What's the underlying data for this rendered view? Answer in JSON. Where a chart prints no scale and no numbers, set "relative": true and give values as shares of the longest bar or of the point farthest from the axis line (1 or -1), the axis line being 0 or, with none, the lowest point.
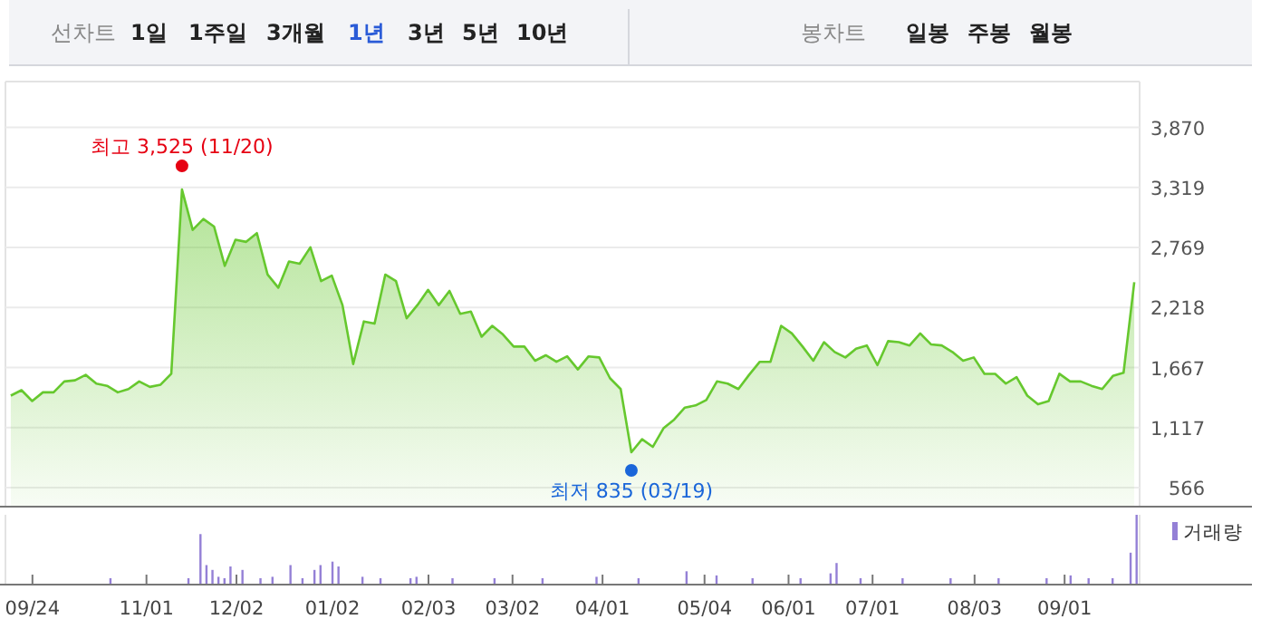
{
  "chart_data": [
    {
      "type": "other",
      "annotations": [
        "선차트",
        "1일",
        "1주일",
        "3개월",
        "1년",
        "3년",
        "5년",
        "10년",
        "봉차트",
        "일봉",
        "주봉",
        "월봉"
      ],
      "colors": [
        "#888888",
        "#222222",
        "#222222",
        "#222222",
        "#2a5bd7",
        "#222222",
        "#222222",
        "#222222",
        "#888888",
        "#222222",
        "#222222",
        "#222222"
      ]
    },
    {
      "type": "area",
      "tick_labels": "y",
      "grid": "y",
      "ylim": [
        400,
        4290
      ],
      "categories": [
        null,
        null,
        null,
        null,
        null,
        null,
        null,
        null,
        null,
        null,
        null,
        null,
        null,
        null,
        null,
        null,
        null,
        null,
        null,
        null,
        null,
        null,
        null,
        null,
        null,
        null,
        null,
        null,
        null,
        null,
        null,
        null,
        null,
        null,
        null,
        null,
        null,
        null,
        null,
        null,
        null,
        null,
        null,
        null,
        null,
        null,
        null,
        null,
        null,
        null,
        null,
        null,
        null,
        null,
        null,
        null,
        null,
        null,
        null,
        null,
        null,
        null,
        null,
        null,
        null,
        null,
        null,
        null,
        null,
        null,
        null,
        null,
        null,
        null,
        null,
        null,
        null,
        null,
        null,
        null,
        null,
        null,
        null,
        null,
        null,
        null,
        null,
        null,
        null,
        null,
        null,
        null,
        null,
        null,
        null,
        null,
        null,
        null,
        null,
        null,
        null,
        null,
        null,
        null,
        null,
        null
      ],
      "yticks": [
        {
          "value": 566,
          "label": "566"
        },
        {
          "value": 1117,
          "label": "1,117"
        },
        {
          "value": 1667,
          "label": "1,667"
        },
        {
          "value": 2218,
          "label": "2,218"
        },
        {
          "value": 2769,
          "label": "2,769"
        },
        {
          "value": 3319,
          "label": "3,319"
        },
        {
          "value": 3870,
          "label": "3,870"
        }
      ],
      "series": [
        {
          "color": "#66c82e",
          "values": [
            1410,
            1460,
            1360,
            1440,
            1440,
            1540,
            1550,
            1600,
            1520,
            1500,
            1440,
            1470,
            1540,
            1490,
            1510,
            1610,
            3300,
            2930,
            3030,
            2960,
            2600,
            2840,
            2820,
            2900,
            2520,
            2400,
            2640,
            2620,
            2770,
            2460,
            2510,
            2240,
            1700,
            2090,
            2070,
            2520,
            2460,
            2120,
            2240,
            2380,
            2240,
            2370,
            2160,
            2180,
            1950,
            2050,
            1970,
            1860,
            1860,
            1730,
            1780,
            1720,
            1770,
            1650,
            1770,
            1760,
            1570,
            1470,
            890,
            1010,
            940,
            1110,
            1190,
            1300,
            1320,
            1370,
            1540,
            1520,
            1470,
            1600,
            1720,
            1720,
            2050,
            1980,
            1860,
            1730,
            1900,
            1810,
            1760,
            1840,
            1870,
            1690,
            1910,
            1900,
            1870,
            1980,
            1880,
            1870,
            1810,
            1730,
            1760,
            1610,
            1610,
            1520,
            1580,
            1410,
            1330,
            1360,
            1610,
            1540,
            1540,
            1500,
            1470,
            1590,
            1620,
            2450
          ]
        }
      ],
      "annotations": [
        "최고 3,525 (11/20)",
        "최저 835 (03/19)"
      ],
      "colors": [
        "#e60012",
        "#1a66d9"
      ]
    },
    {
      "type": "bar",
      "relative": true,
      "tick_labels": "x",
      "legend": "top right",
      "categories": [
        null,
        null,
        null,
        null,
        "09/24",
        null,
        null,
        null,
        null,
        null,
        null,
        null,
        null,
        null,
        null,
        null,
        null,
        null,
        null,
        null,
        null,
        null,
        null,
        "11/01",
        null,
        null,
        null,
        null,
        null,
        null,
        null,
        null,
        null,
        null,
        null,
        null,
        null,
        null,
        "12/02",
        null,
        null,
        null,
        null,
        null,
        null,
        null,
        null,
        null,
        null,
        null,
        null,
        null,
        null,
        null,
        "01/02",
        null,
        null,
        null,
        null,
        null,
        null,
        null,
        null,
        null,
        null,
        null,
        null,
        null,
        null,
        null,
        "02/03",
        null,
        null,
        null,
        null,
        null,
        null,
        null,
        null,
        null,
        null,
        null,
        null,
        null,
        "03/02",
        null,
        null,
        null,
        null,
        null,
        null,
        null,
        null,
        null,
        null,
        null,
        null,
        null,
        null,
        "04/01",
        null,
        null,
        null,
        null,
        null,
        null,
        null,
        null,
        null,
        null,
        null,
        null,
        null,
        null,
        null,
        null,
        "05/04",
        null,
        null,
        null,
        null,
        null,
        null,
        null,
        null,
        null,
        null,
        null,
        null,
        null,
        "06/01",
        null,
        null,
        null,
        null,
        null,
        null,
        null,
        null,
        null,
        null,
        null,
        null,
        null,
        "07/01",
        null,
        null,
        null,
        null,
        null,
        null,
        null,
        null,
        null,
        null,
        null,
        null,
        null,
        null,
        null,
        null,
        "08/03",
        null,
        null,
        null,
        null,
        null,
        null,
        null,
        null,
        null,
        null,
        null,
        null,
        null,
        null,
        "09/01",
        null,
        null,
        null,
        null,
        null,
        null,
        null,
        null,
        null,
        null,
        null,
        null
      ],
      "series": [
        {
          "name": "거래량",
          "color": "#9480d6",
          "values": [
            null,
            null,
            null,
            null,
            null,
            null,
            null,
            null,
            null,
            null,
            null,
            null,
            null,
            null,
            null,
            null,
            null,
            0.08,
            null,
            null,
            null,
            null,
            null,
            null,
            null,
            null,
            null,
            null,
            null,
            null,
            0.08,
            null,
            0.72,
            0.27,
            0.2,
            0.1,
            0.08,
            0.25,
            null,
            0.2,
            null,
            null,
            0.08,
            null,
            0.1,
            null,
            null,
            0.27,
            null,
            0.08,
            null,
            0.2,
            0.27,
            null,
            0.32,
            0.25,
            null,
            null,
            null,
            0.1,
            null,
            null,
            0.08,
            null,
            null,
            null,
            null,
            0.08,
            0.1,
            null,
            null,
            null,
            null,
            null,
            0.08,
            null,
            null,
            null,
            null,
            null,
            null,
            0.08,
            null,
            null,
            null,
            null,
            null,
            null,
            null,
            0.08,
            null,
            null,
            null,
            null,
            null,
            null,
            null,
            null,
            0.1,
            null,
            null,
            null,
            null,
            null,
            null,
            0.08,
            null,
            null,
            null,
            null,
            null,
            null,
            null,
            0.18,
            null,
            null,
            null,
            null,
            0.12,
            null,
            null,
            null,
            null,
            null,
            0.08,
            null,
            null,
            null,
            null,
            null,
            null,
            null,
            0.08,
            null,
            null,
            null,
            null,
            0.15,
            0.3,
            null,
            null,
            null,
            0.08,
            null,
            null,
            null,
            null,
            null,
            null,
            0.08,
            null,
            null,
            null,
            null,
            null,
            null,
            null,
            0.08,
            null,
            null,
            null,
            null,
            null,
            null,
            null,
            0.08,
            null,
            null,
            null,
            null,
            null,
            null,
            null,
            0.08,
            null,
            null,
            null,
            0.12,
            null,
            null,
            0.08,
            null,
            null,
            null,
            0.08,
            null,
            null,
            0.45,
            1
          ]
        }
      ]
    }
  ]
}
